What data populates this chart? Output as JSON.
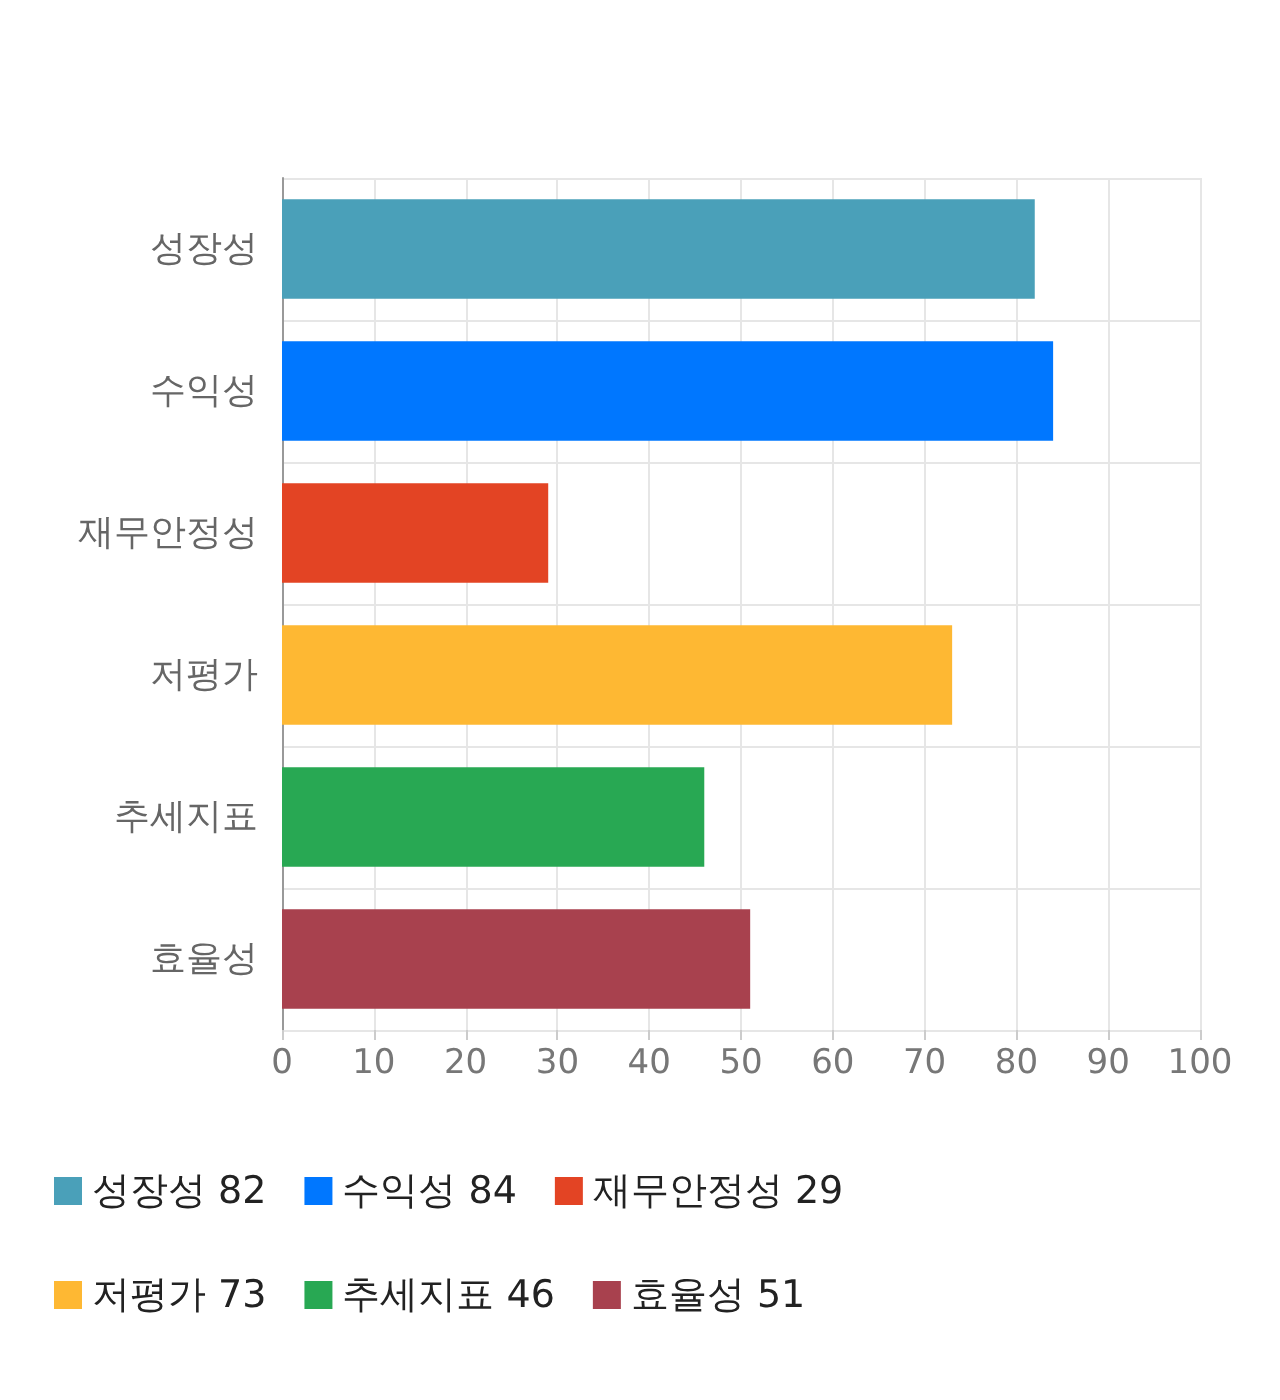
{
  "chart_data": {
    "type": "bar",
    "orientation": "horizontal",
    "stacked": true,
    "categories": [
      "성장성",
      "수익성",
      "재무안정성",
      "저평가",
      "추세지표",
      "효율성"
    ],
    "series": [
      {
        "name": "성장성 82",
        "color": "#4aa0b9",
        "values": [
          82,
          null,
          null,
          null,
          null,
          null
        ]
      },
      {
        "name": "수익성 84",
        "color": "#0077ff",
        "values": [
          null,
          84,
          null,
          null,
          null,
          null
        ]
      },
      {
        "name": "재무안정성 29",
        "color": "#e34424",
        "values": [
          null,
          null,
          29,
          null,
          null,
          null
        ]
      },
      {
        "name": "저평가 73",
        "color": "#feb833",
        "values": [
          null,
          null,
          null,
          73,
          null,
          null
        ]
      },
      {
        "name": "추세지표 46",
        "color": "#28a853",
        "values": [
          null,
          null,
          null,
          null,
          46,
          null
        ]
      },
      {
        "name": "효율성 51",
        "color": "#a8414e",
        "values": [
          null,
          null,
          null,
          null,
          null,
          51
        ]
      }
    ],
    "xlim": [
      0,
      100
    ],
    "xticks": [
      0,
      10,
      20,
      30,
      40,
      50,
      60,
      70,
      80,
      90,
      100
    ],
    "grid": true,
    "legend": "bottom"
  }
}
